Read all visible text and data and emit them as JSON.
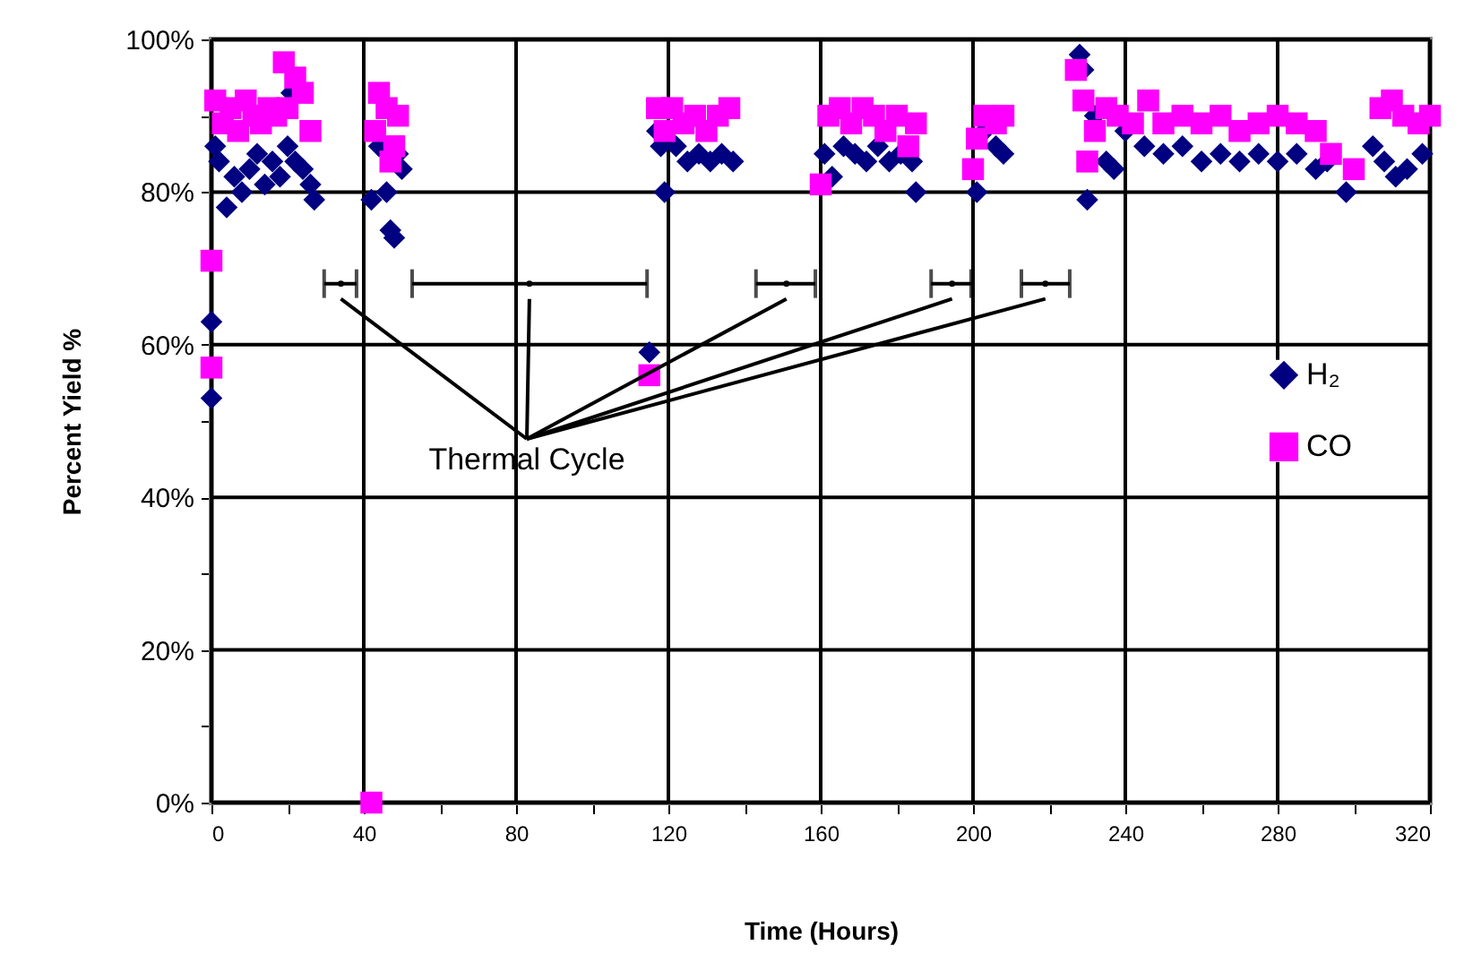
{
  "chart_data": {
    "type": "scatter",
    "xlabel": "Time (Hours)",
    "ylabel": "Percent Yield %",
    "xlim": [
      0,
      320
    ],
    "ylim": [
      0,
      100
    ],
    "xticks": [
      0,
      {
        "value": 20,
        "label": null
      },
      40,
      {
        "value": 60,
        "label": null
      },
      80,
      {
        "value": 100,
        "label": null
      },
      120,
      {
        "value": 140,
        "label": null
      },
      160,
      {
        "value": 180,
        "label": null
      },
      200,
      {
        "value": 220,
        "label": null
      },
      240,
      {
        "value": 260,
        "label": null
      },
      280,
      {
        "value": 300,
        "label": null
      },
      320
    ],
    "yticks": [
      {
        "value": 0,
        "label": "0%"
      },
      {
        "value": 10,
        "label": null
      },
      {
        "value": 20,
        "label": "20%"
      },
      {
        "value": 30,
        "label": null
      },
      {
        "value": 40,
        "label": "40%"
      },
      {
        "value": 50,
        "label": null
      },
      {
        "value": 60,
        "label": "60%"
      },
      {
        "value": 70,
        "label": null
      },
      {
        "value": 80,
        "label": "80%"
      },
      {
        "value": 90,
        "label": null
      },
      {
        "value": 100,
        "label": "100%"
      }
    ],
    "grid": true,
    "legend": "right",
    "series": [
      {
        "name": "H₂",
        "color": "#000080",
        "marker": "diamond",
        "x": [
          0,
          0,
          1,
          2,
          4,
          6,
          8,
          10,
          12,
          14,
          16,
          18,
          20,
          21,
          22,
          24,
          26,
          27,
          42,
          44,
          46,
          47,
          48,
          49,
          50,
          115,
          117,
          118,
          119,
          122,
          125,
          128,
          131,
          134,
          137,
          161,
          163,
          166,
          169,
          172,
          175,
          178,
          181,
          184,
          185,
          201,
          203,
          206,
          208,
          228,
          229,
          230,
          232,
          235,
          237,
          240,
          245,
          250,
          255,
          260,
          265,
          270,
          275,
          280,
          285,
          290,
          293,
          298,
          305,
          308,
          311,
          314,
          318
        ],
        "values": [
          53,
          63,
          86,
          84,
          78,
          82,
          80,
          83,
          85,
          81,
          84,
          82,
          86,
          93,
          84,
          83,
          81,
          79,
          79,
          86,
          80,
          75,
          74,
          85,
          83,
          59,
          88,
          86,
          80,
          86,
          84,
          85,
          84,
          85,
          84,
          85,
          82,
          86,
          85,
          84,
          86,
          84,
          85,
          84,
          80,
          80,
          88,
          86,
          85,
          98,
          96,
          79,
          90,
          84,
          83,
          88,
          86,
          85,
          86,
          84,
          85,
          84,
          85,
          84,
          85,
          83,
          84,
          80,
          86,
          84,
          82,
          83,
          85
        ]
      },
      {
        "name": "CO",
        "color": "#ff00ff",
        "marker": "square",
        "x": [
          0,
          0,
          1,
          3,
          5,
          7,
          9,
          11,
          13,
          15,
          17,
          19,
          20,
          22,
          24,
          26,
          42,
          43,
          44,
          46,
          47,
          48,
          49,
          115,
          117,
          119,
          121,
          124,
          127,
          130,
          133,
          136,
          160,
          162,
          165,
          168,
          171,
          174,
          177,
          180,
          183,
          185,
          200,
          201,
          203,
          206,
          208,
          227,
          229,
          230,
          232,
          235,
          238,
          242,
          246,
          250,
          255,
          260,
          265,
          270,
          275,
          280,
          285,
          290,
          294,
          300,
          307,
          310,
          313,
          317,
          320
        ],
        "values": [
          71,
          57,
          92,
          89,
          91,
          88,
          92,
          90,
          89,
          91,
          90,
          97,
          91,
          95,
          93,
          88,
          0,
          88,
          93,
          91,
          84,
          86,
          90,
          56,
          91,
          88,
          91,
          89,
          90,
          88,
          90,
          91,
          81,
          90,
          91,
          89,
          91,
          90,
          88,
          90,
          86,
          89,
          83,
          87,
          90,
          89,
          90,
          96,
          92,
          84,
          88,
          91,
          90,
          89,
          92,
          89,
          90,
          89,
          90,
          88,
          89,
          90,
          89,
          88,
          85,
          83,
          91,
          92,
          90,
          89,
          90
        ]
      },
      {
        "type": "scatter",
        "marker": "none",
        "color": "#000000",
        "x": [
          34,
          83.5,
          151,
          194.5,
          219
        ],
        "values": [
          68,
          68,
          68,
          68,
          68
        ],
        "xerrors": [
          [
            29.6,
            38.1
          ],
          [
            52.7,
            114.4
          ],
          [
            143,
            158.6
          ],
          [
            189,
            199.5
          ],
          [
            212.7,
            225.4
          ]
        ]
      }
    ],
    "annotations": [
      "Thermal Cycle"
    ]
  }
}
